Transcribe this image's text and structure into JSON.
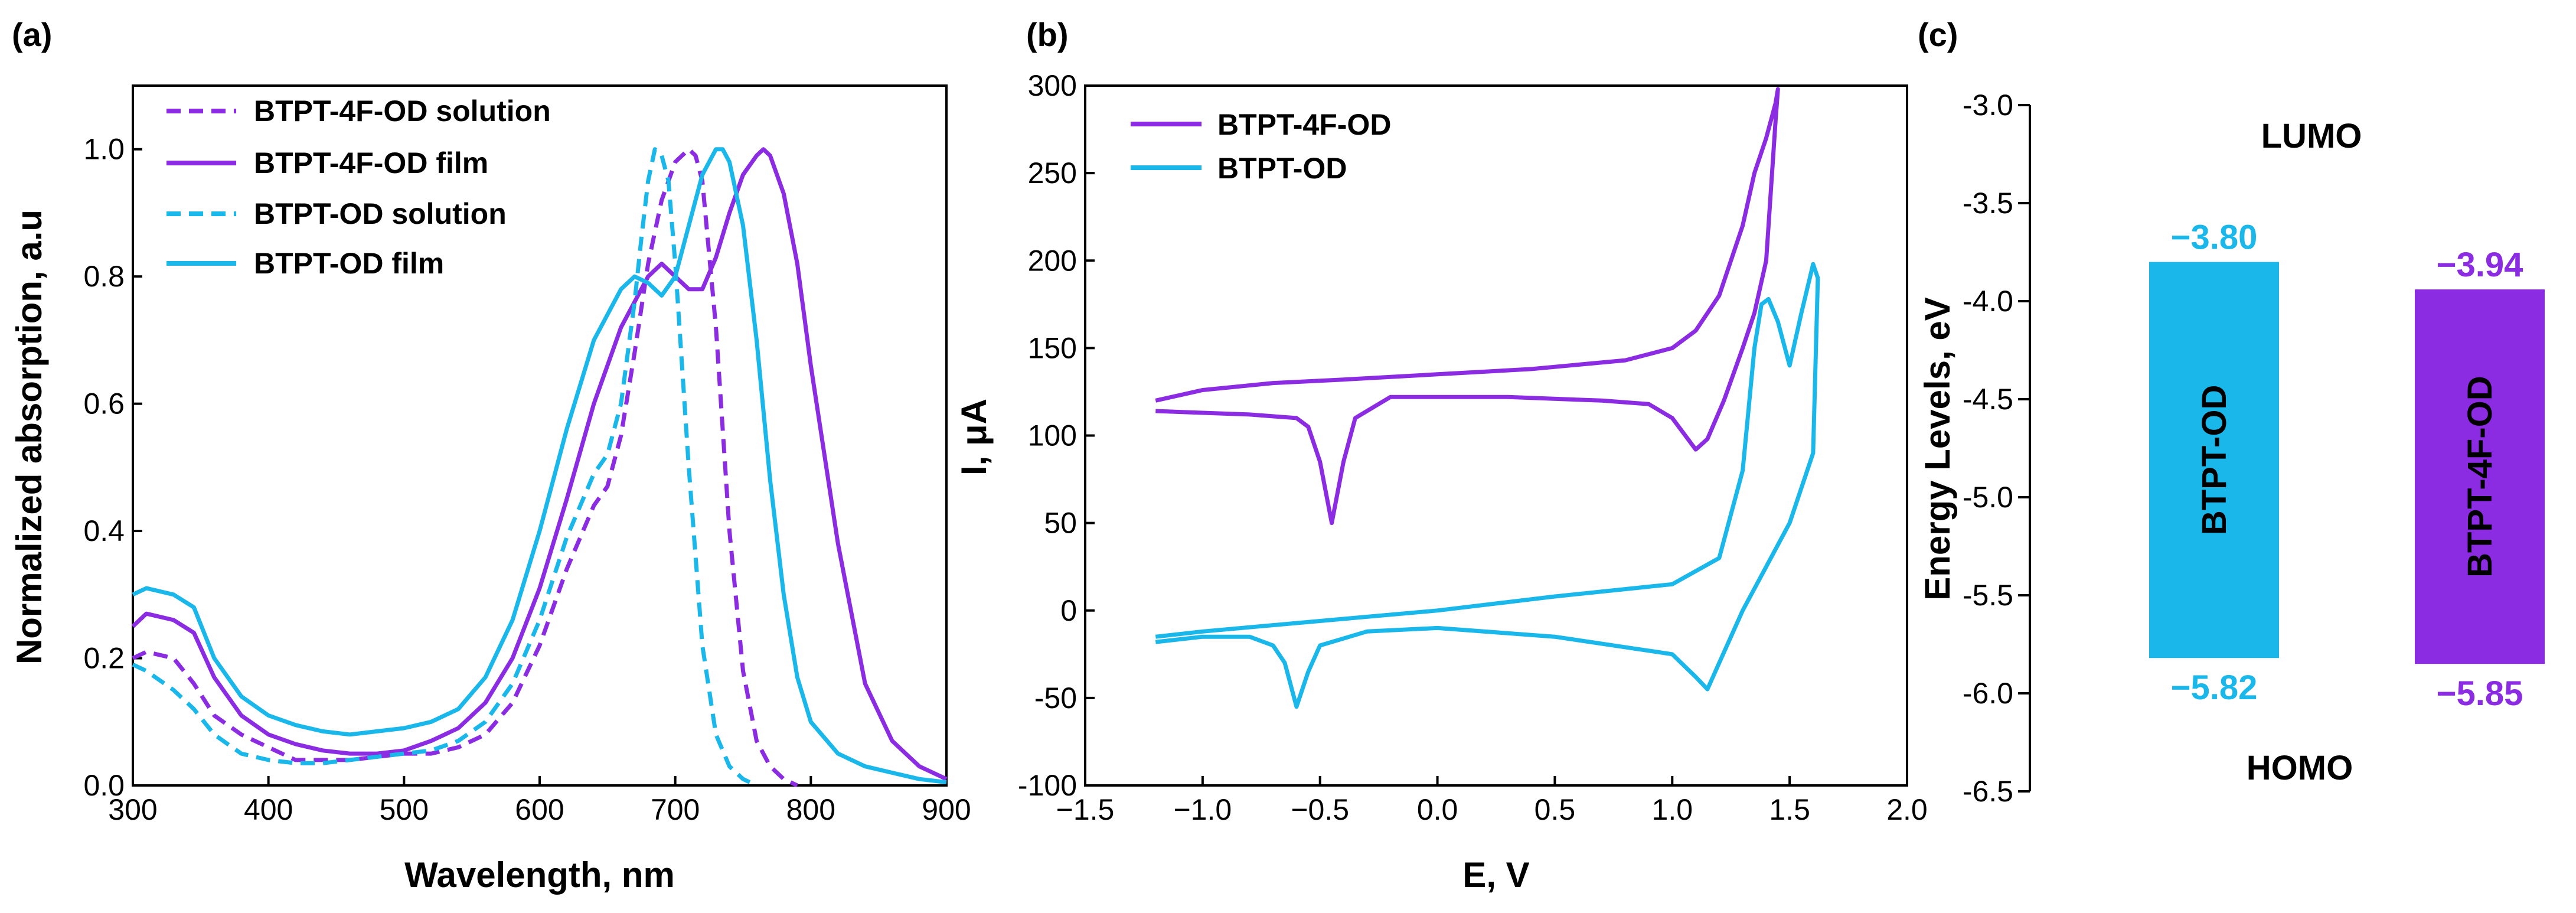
{
  "colors": {
    "purple": "#8B2BE2",
    "cyan": "#19B7EA"
  },
  "chart_data": [
    {
      "panel": "(a)",
      "type": "line",
      "xlabel": "Wavelength, nm",
      "ylabel": "Normalized  absorption, a.u",
      "xlim": [
        300,
        900
      ],
      "ylim": [
        0,
        1.1
      ],
      "xticks": [
        "300",
        "400",
        "500",
        "600",
        "700",
        "800",
        "900"
      ],
      "yticks": [
        "0.0",
        "0.2",
        "0.4",
        "0.6",
        "0.8",
        "1.0"
      ],
      "series": [
        {
          "name": "BTPT-4F-OD solution",
          "color": "purple",
          "dash": true,
          "x": [
            300,
            310,
            330,
            345,
            360,
            380,
            400,
            420,
            440,
            460,
            480,
            500,
            520,
            540,
            560,
            580,
            600,
            620,
            640,
            650,
            660,
            670,
            680,
            690,
            700,
            710,
            715,
            720,
            730,
            740,
            750,
            760,
            770,
            780,
            790
          ],
          "y": [
            0.2,
            0.21,
            0.2,
            0.16,
            0.11,
            0.08,
            0.06,
            0.04,
            0.04,
            0.04,
            0.045,
            0.05,
            0.05,
            0.06,
            0.08,
            0.13,
            0.22,
            0.34,
            0.44,
            0.47,
            0.55,
            0.68,
            0.82,
            0.92,
            0.98,
            1.0,
            0.99,
            0.95,
            0.72,
            0.4,
            0.18,
            0.07,
            0.03,
            0.01,
            0.0
          ]
        },
        {
          "name": "BTPT-4F-OD film",
          "color": "purple",
          "dash": false,
          "x": [
            300,
            310,
            330,
            345,
            360,
            380,
            400,
            420,
            440,
            460,
            480,
            500,
            520,
            540,
            560,
            580,
            600,
            620,
            640,
            660,
            680,
            690,
            700,
            710,
            720,
            730,
            740,
            750,
            760,
            765,
            770,
            780,
            790,
            800,
            820,
            840,
            860,
            880,
            900
          ],
          "y": [
            0.25,
            0.27,
            0.26,
            0.24,
            0.17,
            0.11,
            0.08,
            0.065,
            0.055,
            0.05,
            0.05,
            0.055,
            0.07,
            0.09,
            0.13,
            0.2,
            0.31,
            0.45,
            0.6,
            0.72,
            0.8,
            0.82,
            0.8,
            0.78,
            0.78,
            0.83,
            0.9,
            0.96,
            0.99,
            1.0,
            0.99,
            0.93,
            0.82,
            0.66,
            0.38,
            0.16,
            0.07,
            0.03,
            0.01
          ]
        },
        {
          "name": "BTPT-OD solution",
          "color": "cyan",
          "dash": true,
          "x": [
            300,
            310,
            330,
            345,
            360,
            380,
            400,
            420,
            440,
            460,
            480,
            500,
            520,
            540,
            560,
            580,
            600,
            620,
            640,
            650,
            660,
            670,
            675,
            680,
            685,
            690,
            695,
            700,
            710,
            720,
            730,
            740,
            750,
            760
          ],
          "y": [
            0.19,
            0.18,
            0.15,
            0.12,
            0.08,
            0.05,
            0.04,
            0.035,
            0.035,
            0.04,
            0.045,
            0.05,
            0.055,
            0.07,
            0.1,
            0.16,
            0.26,
            0.39,
            0.49,
            0.52,
            0.6,
            0.76,
            0.86,
            0.95,
            1.0,
            0.99,
            0.95,
            0.82,
            0.5,
            0.22,
            0.08,
            0.03,
            0.01,
            0.0
          ]
        },
        {
          "name": "BTPT-OD film",
          "color": "cyan",
          "dash": false,
          "x": [
            300,
            310,
            330,
            345,
            360,
            380,
            400,
            420,
            440,
            460,
            480,
            500,
            520,
            540,
            560,
            580,
            600,
            620,
            640,
            660,
            670,
            680,
            690,
            700,
            710,
            720,
            730,
            735,
            740,
            750,
            760,
            770,
            780,
            790,
            800,
            820,
            840,
            860,
            880,
            900
          ],
          "y": [
            0.3,
            0.31,
            0.3,
            0.28,
            0.2,
            0.14,
            0.11,
            0.095,
            0.085,
            0.08,
            0.085,
            0.09,
            0.1,
            0.12,
            0.17,
            0.26,
            0.4,
            0.56,
            0.7,
            0.78,
            0.8,
            0.79,
            0.77,
            0.8,
            0.88,
            0.96,
            1.0,
            1.0,
            0.98,
            0.88,
            0.7,
            0.48,
            0.3,
            0.17,
            0.1,
            0.05,
            0.03,
            0.02,
            0.01,
            0.005
          ]
        }
      ]
    },
    {
      "panel": "(b)",
      "type": "line",
      "xlabel": "E, V",
      "ylabel": "I, μA",
      "xlim": [
        -1.5,
        2.0
      ],
      "ylim": [
        -100,
        300
      ],
      "xticks": [
        "−1.5",
        "−1.0",
        "−0.5",
        "0.0",
        "0.5",
        "1.0",
        "1.5",
        "2.0"
      ],
      "yticks": [
        "300",
        "250",
        "200",
        "150",
        "100",
        "50",
        "0",
        "-50",
        "-100"
      ],
      "series": [
        {
          "name": "BTPT-4F-OD",
          "color": "purple",
          "x": [
            -1.2,
            -1.0,
            -0.7,
            -0.4,
            0.0,
            0.4,
            0.8,
            1.0,
            1.1,
            1.2,
            1.3,
            1.35,
            1.4,
            1.44,
            1.45,
            1.44,
            1.4,
            1.35,
            1.3,
            1.22,
            1.15,
            1.1,
            1.0,
            0.9,
            0.7,
            0.3,
            -0.2,
            -0.35,
            -0.4,
            -0.45,
            -0.5,
            -0.55,
            -0.6,
            -0.8,
            -1.0,
            -1.2
          ],
          "y": [
            120,
            126,
            130,
            132,
            135,
            138,
            143,
            150,
            160,
            180,
            220,
            250,
            270,
            290,
            298,
            280,
            200,
            170,
            150,
            120,
            98,
            92,
            110,
            118,
            120,
            122,
            122,
            110,
            85,
            50,
            85,
            105,
            110,
            112,
            113,
            114
          ]
        },
        {
          "name": "BTPT-OD",
          "color": "cyan",
          "x": [
            -1.2,
            -1.0,
            -0.5,
            0.0,
            0.5,
            1.0,
            1.2,
            1.3,
            1.35,
            1.38,
            1.41,
            1.45,
            1.5,
            1.55,
            1.6,
            1.62,
            1.6,
            1.55,
            1.5,
            1.4,
            1.3,
            1.2,
            1.15,
            1.1,
            1.0,
            0.5,
            0.0,
            -0.3,
            -0.5,
            -0.55,
            -0.6,
            -0.65,
            -0.7,
            -0.8,
            -1.0,
            -1.2
          ],
          "y": [
            -15,
            -12,
            -6,
            0,
            8,
            15,
            30,
            80,
            150,
            175,
            178,
            165,
            140,
            170,
            198,
            190,
            90,
            70,
            50,
            25,
            0,
            -30,
            -45,
            -38,
            -25,
            -15,
            -10,
            -12,
            -20,
            -35,
            -55,
            -30,
            -20,
            -15,
            -15,
            -18
          ]
        }
      ],
      "legend": [
        "BTPT-4F-OD",
        "BTPT-OD"
      ]
    },
    {
      "panel": "(c)",
      "type": "bar",
      "ylabel": "Energy Levels, eV",
      "ylim": [
        -6.5,
        -3.0
      ],
      "yticks": [
        "-3.0",
        "-3.5",
        "-4.0",
        "-4.5",
        "-5.0",
        "-5.5",
        "-6.0",
        "-6.5"
      ],
      "top_label": "LUMO",
      "bottom_label": "HOMO",
      "bars": [
        {
          "name": "BTPT-OD",
          "color": "cyan",
          "lumo": -3.8,
          "homo": -5.82,
          "lumo_text": "−3.80",
          "homo_text": "−5.82"
        },
        {
          "name": "BTPT-4F-OD",
          "color": "purple",
          "lumo": -3.94,
          "homo": -5.85,
          "lumo_text": "−3.94",
          "homo_text": "−5.85"
        }
      ]
    }
  ]
}
